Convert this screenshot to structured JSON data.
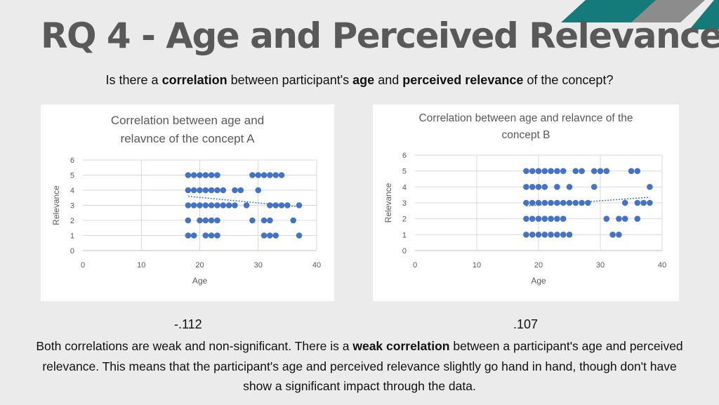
{
  "title": "RQ 4 - Age and Perceived Relevance",
  "question": {
    "p1": "Is there a ",
    "b1": "correlation",
    "p2": " between participant's ",
    "b2": "age",
    "p3": " and ",
    "b3": "perceived relevance",
    "p4": " of the concept?"
  },
  "coefficients": {
    "a": "-.112",
    "b": ".107"
  },
  "conclusion": {
    "p1": "Both correlations are weak and non-significant. There is a ",
    "b1": "weak correlation",
    "p2": " between a participant's age and perceived relevance. This means that the participant's age and perceived relevance slightly go hand in hand, though don't have show a significant impact through the data."
  },
  "colors": {
    "title": "#595959",
    "point": "#4472c4",
    "grid": "#d9d9d9",
    "deco_teal": "#147a7a",
    "deco_gray": "#8c8c8c",
    "chart_text": "#595959"
  },
  "chart_data": [
    {
      "type": "scatter",
      "title": "Correlation between age and relavnce of the concept A",
      "title_lines": [
        "Correlation between age and",
        "relavnce of the concept A"
      ],
      "xlabel": "Age",
      "ylabel": "Relevance",
      "xlim": [
        0,
        40
      ],
      "ylim": [
        0,
        6
      ],
      "xticks": [
        0,
        10,
        20,
        30,
        40
      ],
      "yticks": [
        0,
        1,
        2,
        3,
        4,
        5,
        6
      ],
      "grid": true,
      "trendline": {
        "type": "linear",
        "x": [
          18,
          37
        ],
        "y": [
          3.6,
          2.9
        ]
      },
      "points": [
        {
          "x": 18,
          "y": 5
        },
        {
          "x": 19,
          "y": 5
        },
        {
          "x": 20,
          "y": 5
        },
        {
          "x": 21,
          "y": 5
        },
        {
          "x": 22,
          "y": 5
        },
        {
          "x": 23,
          "y": 5
        },
        {
          "x": 29,
          "y": 5
        },
        {
          "x": 30,
          "y": 5
        },
        {
          "x": 31,
          "y": 5
        },
        {
          "x": 32,
          "y": 5
        },
        {
          "x": 33,
          "y": 5
        },
        {
          "x": 34,
          "y": 5
        },
        {
          "x": 18,
          "y": 4
        },
        {
          "x": 19,
          "y": 4
        },
        {
          "x": 20,
          "y": 4
        },
        {
          "x": 21,
          "y": 4
        },
        {
          "x": 22,
          "y": 4
        },
        {
          "x": 23,
          "y": 4
        },
        {
          "x": 24,
          "y": 4
        },
        {
          "x": 26,
          "y": 4
        },
        {
          "x": 27,
          "y": 4
        },
        {
          "x": 30,
          "y": 4
        },
        {
          "x": 18,
          "y": 3
        },
        {
          "x": 19,
          "y": 3
        },
        {
          "x": 20,
          "y": 3
        },
        {
          "x": 21,
          "y": 3
        },
        {
          "x": 22,
          "y": 3
        },
        {
          "x": 23,
          "y": 3
        },
        {
          "x": 24,
          "y": 3
        },
        {
          "x": 25,
          "y": 3
        },
        {
          "x": 26,
          "y": 3
        },
        {
          "x": 28,
          "y": 3
        },
        {
          "x": 32,
          "y": 3
        },
        {
          "x": 33,
          "y": 3
        },
        {
          "x": 34,
          "y": 3
        },
        {
          "x": 35,
          "y": 3
        },
        {
          "x": 37,
          "y": 3
        },
        {
          "x": 18,
          "y": 2
        },
        {
          "x": 20,
          "y": 2
        },
        {
          "x": 21,
          "y": 2
        },
        {
          "x": 22,
          "y": 2
        },
        {
          "x": 23,
          "y": 2
        },
        {
          "x": 29,
          "y": 2
        },
        {
          "x": 31,
          "y": 2
        },
        {
          "x": 32,
          "y": 2
        },
        {
          "x": 36,
          "y": 2
        },
        {
          "x": 18,
          "y": 1
        },
        {
          "x": 19,
          "y": 1
        },
        {
          "x": 21,
          "y": 1
        },
        {
          "x": 22,
          "y": 1
        },
        {
          "x": 23,
          "y": 1
        },
        {
          "x": 31,
          "y": 1
        },
        {
          "x": 32,
          "y": 1
        },
        {
          "x": 33,
          "y": 1
        },
        {
          "x": 37,
          "y": 1
        }
      ]
    },
    {
      "type": "scatter",
      "title": "Correlation between age and relavnce of the concept B",
      "title_lines": [
        "Correlation between age and relavnce of the",
        "concept B"
      ],
      "xlabel": "Age",
      "ylabel": "Relevance",
      "xlim": [
        0,
        40
      ],
      "ylim": [
        0,
        6
      ],
      "xticks": [
        0,
        10,
        20,
        30,
        40
      ],
      "yticks": [
        0,
        1,
        2,
        3,
        4,
        5,
        6
      ],
      "grid": true,
      "trendline": {
        "type": "linear",
        "x": [
          18,
          38
        ],
        "y": [
          2.8,
          3.35
        ]
      },
      "points": [
        {
          "x": 18,
          "y": 5
        },
        {
          "x": 19,
          "y": 5
        },
        {
          "x": 20,
          "y": 5
        },
        {
          "x": 21,
          "y": 5
        },
        {
          "x": 22,
          "y": 5
        },
        {
          "x": 23,
          "y": 5
        },
        {
          "x": 24,
          "y": 5
        },
        {
          "x": 26,
          "y": 5
        },
        {
          "x": 27,
          "y": 5
        },
        {
          "x": 29,
          "y": 5
        },
        {
          "x": 30,
          "y": 5
        },
        {
          "x": 31,
          "y": 5
        },
        {
          "x": 35,
          "y": 5
        },
        {
          "x": 36,
          "y": 5
        },
        {
          "x": 18,
          "y": 4
        },
        {
          "x": 19,
          "y": 4
        },
        {
          "x": 20,
          "y": 4
        },
        {
          "x": 21,
          "y": 4
        },
        {
          "x": 23,
          "y": 4
        },
        {
          "x": 25,
          "y": 4
        },
        {
          "x": 29,
          "y": 4
        },
        {
          "x": 38,
          "y": 4
        },
        {
          "x": 18,
          "y": 3
        },
        {
          "x": 19,
          "y": 3
        },
        {
          "x": 20,
          "y": 3
        },
        {
          "x": 21,
          "y": 3
        },
        {
          "x": 22,
          "y": 3
        },
        {
          "x": 23,
          "y": 3
        },
        {
          "x": 24,
          "y": 3
        },
        {
          "x": 25,
          "y": 3
        },
        {
          "x": 26,
          "y": 3
        },
        {
          "x": 27,
          "y": 3
        },
        {
          "x": 28,
          "y": 3
        },
        {
          "x": 34,
          "y": 3
        },
        {
          "x": 36,
          "y": 3
        },
        {
          "x": 37,
          "y": 3
        },
        {
          "x": 38,
          "y": 3
        },
        {
          "x": 18,
          "y": 2
        },
        {
          "x": 19,
          "y": 2
        },
        {
          "x": 20,
          "y": 2
        },
        {
          "x": 21,
          "y": 2
        },
        {
          "x": 22,
          "y": 2
        },
        {
          "x": 23,
          "y": 2
        },
        {
          "x": 24,
          "y": 2
        },
        {
          "x": 31,
          "y": 2
        },
        {
          "x": 33,
          "y": 2
        },
        {
          "x": 34,
          "y": 2
        },
        {
          "x": 36,
          "y": 2
        },
        {
          "x": 18,
          "y": 1
        },
        {
          "x": 19,
          "y": 1
        },
        {
          "x": 20,
          "y": 1
        },
        {
          "x": 21,
          "y": 1
        },
        {
          "x": 22,
          "y": 1
        },
        {
          "x": 23,
          "y": 1
        },
        {
          "x": 24,
          "y": 1
        },
        {
          "x": 25,
          "y": 1
        },
        {
          "x": 32,
          "y": 1
        },
        {
          "x": 33,
          "y": 1
        }
      ]
    }
  ]
}
